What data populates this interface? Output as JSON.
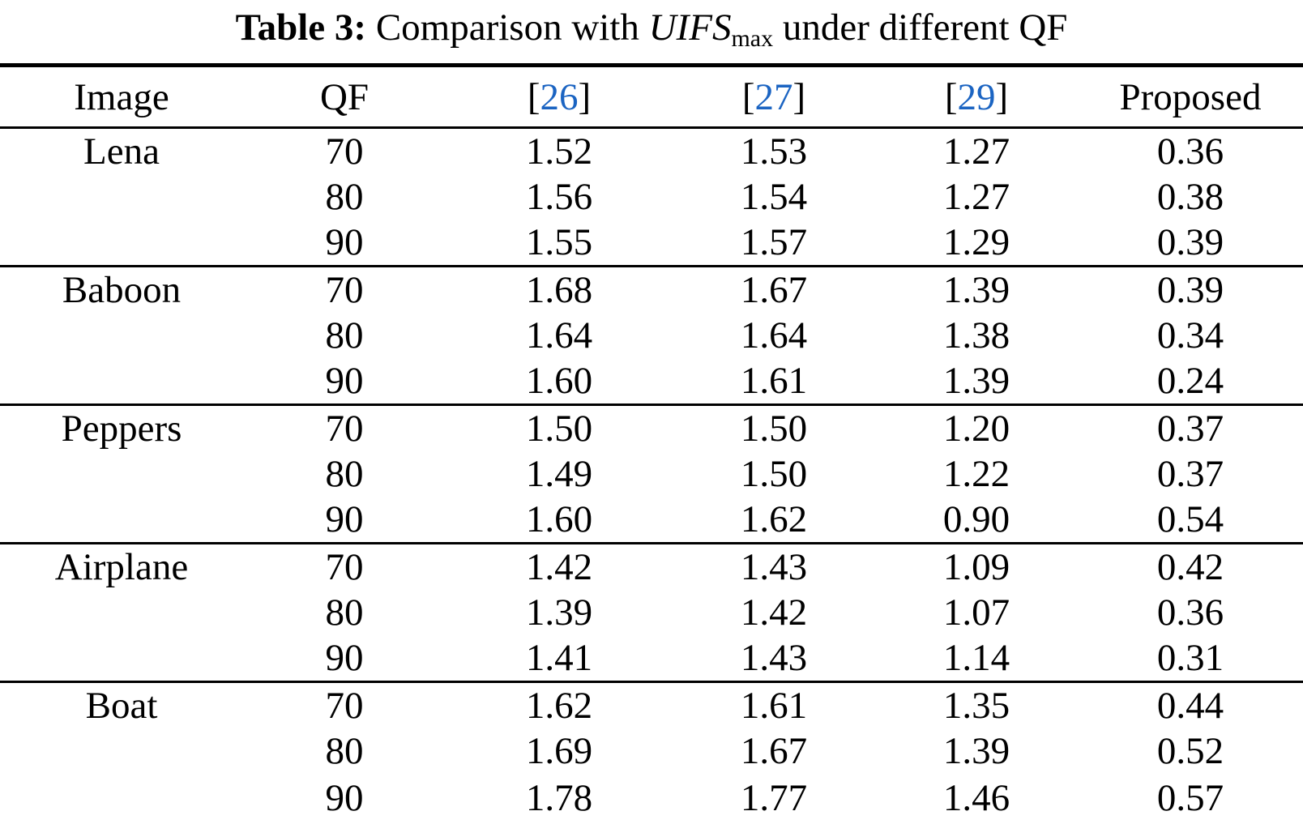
{
  "caption": {
    "label": "Table 3:",
    "before_uifs": "  Comparison with ",
    "uifs": "UIFS",
    "uifs_subscript": "max",
    "after_uifs": " under different QF"
  },
  "table": {
    "columns": [
      "Image",
      "QF",
      "[26]",
      "[27]",
      "[29]",
      "Proposed"
    ],
    "bracket_open": "[",
    "bracket_close": "]",
    "citation_numbers": [
      "26",
      "27",
      "29"
    ],
    "sections": [
      {
        "image": "Lena",
        "rows": [
          {
            "qf": "70",
            "ref26": "1.52",
            "ref27": "1.53",
            "ref29": "1.27",
            "proposed": "0.36"
          },
          {
            "qf": "80",
            "ref26": "1.56",
            "ref27": "1.54",
            "ref29": "1.27",
            "proposed": "0.38"
          },
          {
            "qf": "90",
            "ref26": "1.55",
            "ref27": "1.57",
            "ref29": "1.29",
            "proposed": "0.39"
          }
        ]
      },
      {
        "image": "Baboon",
        "rows": [
          {
            "qf": "70",
            "ref26": "1.68",
            "ref27": "1.67",
            "ref29": "1.39",
            "proposed": "0.39"
          },
          {
            "qf": "80",
            "ref26": "1.64",
            "ref27": "1.64",
            "ref29": "1.38",
            "proposed": "0.34"
          },
          {
            "qf": "90",
            "ref26": "1.60",
            "ref27": "1.61",
            "ref29": "1.39",
            "proposed": "0.24"
          }
        ]
      },
      {
        "image": "Peppers",
        "rows": [
          {
            "qf": "70",
            "ref26": "1.50",
            "ref27": "1.50",
            "ref29": "1.20",
            "proposed": "0.37"
          },
          {
            "qf": "80",
            "ref26": "1.49",
            "ref27": "1.50",
            "ref29": "1.22",
            "proposed": "0.37"
          },
          {
            "qf": "90",
            "ref26": "1.60",
            "ref27": "1.62",
            "ref29": "0.90",
            "proposed": "0.54"
          }
        ]
      },
      {
        "image": "Airplane",
        "rows": [
          {
            "qf": "70",
            "ref26": "1.42",
            "ref27": "1.43",
            "ref29": "1.09",
            "proposed": "0.42"
          },
          {
            "qf": "80",
            "ref26": "1.39",
            "ref27": "1.42",
            "ref29": "1.07",
            "proposed": "0.36"
          },
          {
            "qf": "90",
            "ref26": "1.41",
            "ref27": "1.43",
            "ref29": "1.14",
            "proposed": "0.31"
          }
        ]
      },
      {
        "image": "Boat",
        "rows": [
          {
            "qf": "70",
            "ref26": "1.62",
            "ref27": "1.61",
            "ref29": "1.35",
            "proposed": "0.44"
          },
          {
            "qf": "80",
            "ref26": "1.69",
            "ref27": "1.67",
            "ref29": "1.39",
            "proposed": "0.52"
          },
          {
            "qf": "90",
            "ref26": "1.78",
            "ref27": "1.77",
            "ref29": "1.46",
            "proposed": "0.57"
          }
        ]
      }
    ]
  },
  "colors": {
    "citation_blue": "#1b64c2",
    "text": "#000000",
    "background": "#ffffff"
  }
}
